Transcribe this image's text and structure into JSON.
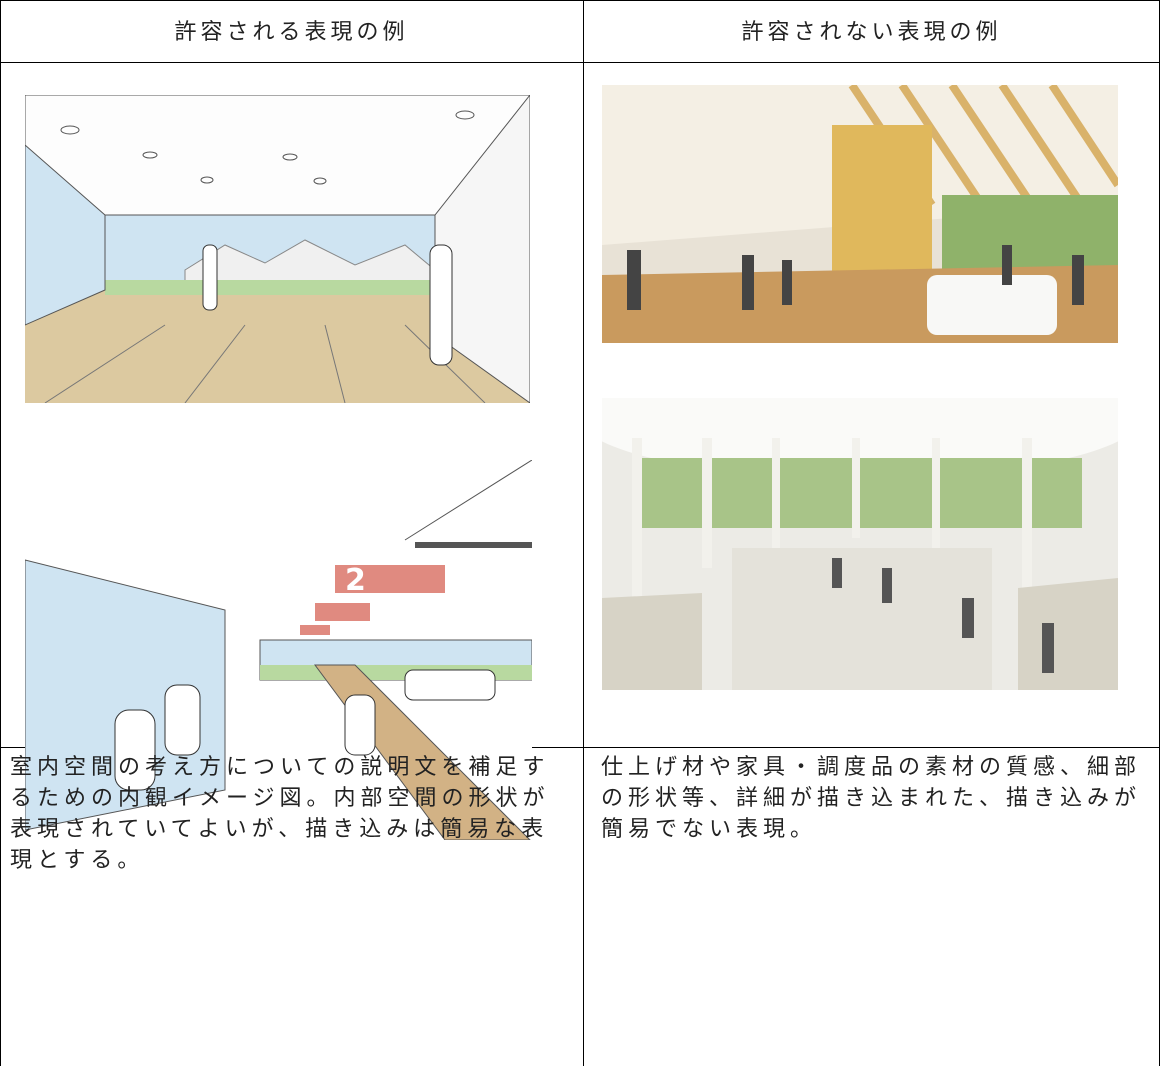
{
  "table": {
    "headers": [
      "許容される表現の例",
      "許容されない表現の例"
    ],
    "descriptions": [
      "室内空間の考え方についての説明文を補足するための内観イメージ図。内部空間の形状が表現されていてよいが、描き込みは簡易な表現とする。",
      "仕上げ材や家具・調度品の素材の質感、細部の形状等、詳細が描き込まれた、描き込みが簡易でない表現。"
    ]
  }
}
